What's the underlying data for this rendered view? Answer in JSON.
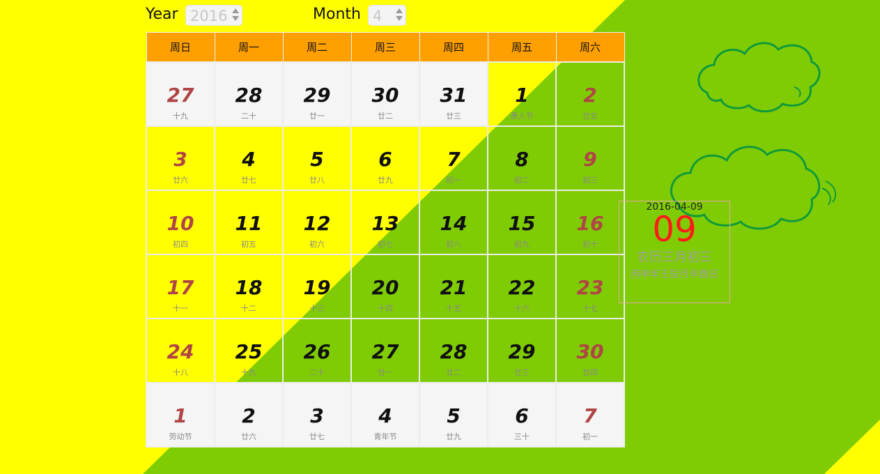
{
  "controls": {
    "year_label": "Year",
    "year_value": "2016",
    "month_label": "Month",
    "month_value": "4"
  },
  "weekdays": [
    "周日",
    "周一",
    "周二",
    "周三",
    "周四",
    "周五",
    "周六"
  ],
  "weeks": [
    [
      {
        "d": "27",
        "l": "十九",
        "g": true
      },
      {
        "d": "28",
        "l": "二十",
        "g": true
      },
      {
        "d": "29",
        "l": "廿一",
        "g": true
      },
      {
        "d": "30",
        "l": "廿二",
        "g": true
      },
      {
        "d": "31",
        "l": "廿三",
        "g": true
      },
      {
        "d": "1",
        "l": "愚人节",
        "g": false
      },
      {
        "d": "2",
        "l": "廿五",
        "g": false
      }
    ],
    [
      {
        "d": "3",
        "l": "廿六",
        "g": false
      },
      {
        "d": "4",
        "l": "廿七",
        "g": false
      },
      {
        "d": "5",
        "l": "廿八",
        "g": false
      },
      {
        "d": "6",
        "l": "廿九",
        "g": false
      },
      {
        "d": "7",
        "l": "初一",
        "g": false
      },
      {
        "d": "8",
        "l": "初二",
        "g": false
      },
      {
        "d": "9",
        "l": "初三",
        "g": false
      }
    ],
    [
      {
        "d": "10",
        "l": "初四",
        "g": false
      },
      {
        "d": "11",
        "l": "初五",
        "g": false
      },
      {
        "d": "12",
        "l": "初六",
        "g": false
      },
      {
        "d": "13",
        "l": "初七",
        "g": false
      },
      {
        "d": "14",
        "l": "初八",
        "g": false
      },
      {
        "d": "15",
        "l": "初九",
        "g": false
      },
      {
        "d": "16",
        "l": "初十",
        "g": false
      }
    ],
    [
      {
        "d": "17",
        "l": "十一",
        "g": false
      },
      {
        "d": "18",
        "l": "十二",
        "g": false
      },
      {
        "d": "19",
        "l": "十三",
        "g": false
      },
      {
        "d": "20",
        "l": "十四",
        "g": false
      },
      {
        "d": "21",
        "l": "十五",
        "g": false
      },
      {
        "d": "22",
        "l": "十六",
        "g": false
      },
      {
        "d": "23",
        "l": "十七",
        "g": false
      }
    ],
    [
      {
        "d": "24",
        "l": "十八",
        "g": false
      },
      {
        "d": "25",
        "l": "十九",
        "g": false
      },
      {
        "d": "26",
        "l": "二十",
        "g": false
      },
      {
        "d": "27",
        "l": "廿一",
        "g": false
      },
      {
        "d": "28",
        "l": "廿二",
        "g": false
      },
      {
        "d": "29",
        "l": "廿三",
        "g": false
      },
      {
        "d": "30",
        "l": "廿四",
        "g": false
      }
    ],
    [
      {
        "d": "1",
        "l": "劳动节",
        "g": true
      },
      {
        "d": "2",
        "l": "廿六",
        "g": true
      },
      {
        "d": "3",
        "l": "廿七",
        "g": true
      },
      {
        "d": "4",
        "l": "青年节",
        "g": true
      },
      {
        "d": "5",
        "l": "廿九",
        "g": true
      },
      {
        "d": "6",
        "l": "三十",
        "g": true
      },
      {
        "d": "7",
        "l": "初一",
        "g": true
      }
    ]
  ],
  "detail": {
    "date": "2016-04-09",
    "day": "09",
    "lunar": "农历三月初三",
    "ganzhi": "丙申年壬辰月辛酉日"
  },
  "colors": {
    "yellow": "#ffff00",
    "green": "#80cc04",
    "header": "#ff9f00",
    "weekend": "#b04545",
    "accent": "#ff1a1a",
    "cloud_stroke": "#0f9a3a"
  },
  "icons": [
    "cloud-icon",
    "cloud-icon"
  ]
}
